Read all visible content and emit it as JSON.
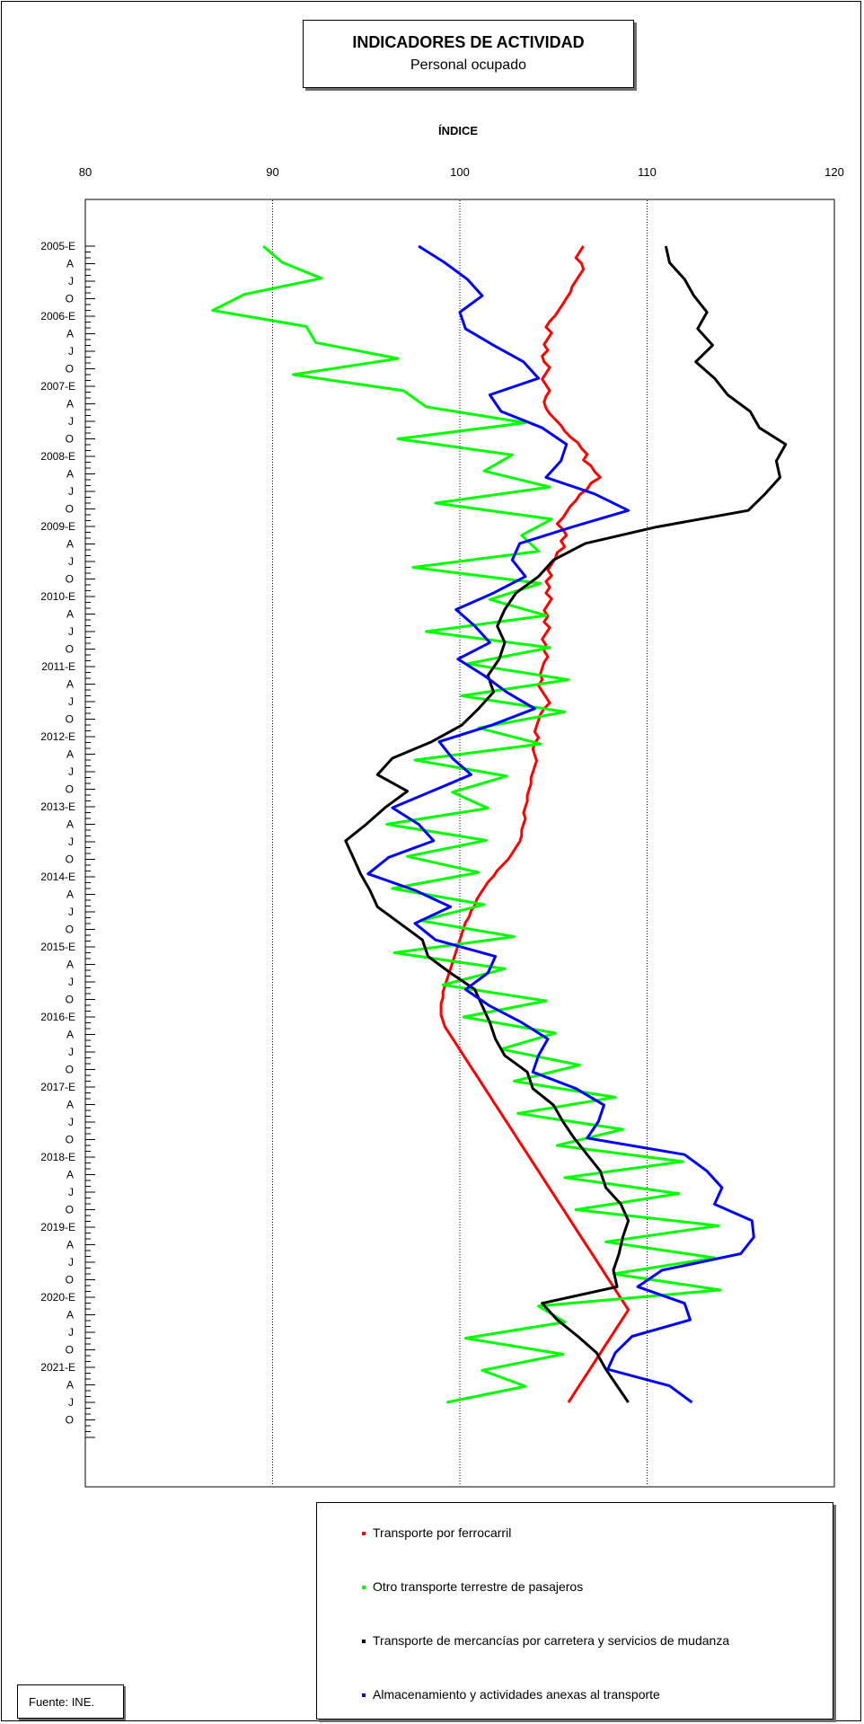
{
  "chart_data": {
    "type": "line",
    "title": "INDICADORES DE ACTIVIDAD",
    "subtitle": "Personal ocupado",
    "xlabel": "ÍNDICE",
    "xlim": [
      80,
      120
    ],
    "x_ticks": [
      "80",
      "90",
      "100",
      "110",
      "120"
    ],
    "gridlines_at": [
      90,
      100,
      110
    ],
    "y_axis_orientation": "time runs downward; values read on horizontal axis",
    "y_tick_labels": [
      "2005-E",
      "A",
      "J",
      "O",
      "2006-E",
      "A",
      "J",
      "O",
      "2007-E",
      "A",
      "J",
      "O",
      "2008-E",
      "A",
      "J",
      "O",
      "2009-E",
      "A",
      "J",
      "O",
      "2010-E",
      "A",
      "J",
      "O",
      "2011-E",
      "A",
      "J",
      "O",
      "2012-E",
      "A",
      "J",
      "O",
      "2013-E",
      "A",
      "J",
      "O",
      "2014-E",
      "A",
      "J",
      "O",
      "2015-E",
      "A",
      "J",
      "O",
      "2016-E",
      "A",
      "J",
      "O",
      "2017-E",
      "A",
      "J",
      "O",
      "2018-E",
      "A",
      "J",
      "O",
      "2019-E",
      "A",
      "J",
      "O",
      "2020-E",
      "A",
      "J",
      "O",
      "2021-E",
      "A",
      "J",
      "O"
    ],
    "period_start": "2005-01",
    "legend_position": "bottom-right",
    "series": [
      {
        "name": "Transporte por ferrocarril",
        "color": "#ff0000",
        "values": [
          106.6,
          106.4,
          106.2,
          106.5,
          106.6,
          106.4,
          106.2,
          106.0,
          105.9,
          105.7,
          105.5,
          105.3,
          105.1,
          104.8,
          104.6,
          104.9,
          104.7,
          104.5,
          104.7,
          104.4,
          104.5,
          104.8,
          104.6,
          104.4,
          104.6,
          104.8,
          104.6,
          104.5,
          104.6,
          104.8,
          105.1,
          105.4,
          105.6,
          105.9,
          106.3,
          106.5,
          106.8,
          106.6,
          107.0,
          107.2,
          107.5,
          107.0,
          106.8,
          106.4,
          106.2,
          105.9,
          105.7,
          105.5,
          105.2,
          105.5,
          105.7,
          105.4,
          105.6,
          105.2,
          105.1,
          104.9,
          104.7,
          104.9,
          104.6,
          104.8,
          104.6,
          104.9,
          104.7,
          104.5,
          104.7,
          104.5,
          104.8,
          104.6,
          104.4,
          104.6,
          104.5,
          104.7,
          104.5,
          104.4,
          104.3,
          104.4,
          104.2,
          104.4,
          104.6,
          104.8,
          104.5,
          104.3,
          104.2,
          104.1,
          104.0,
          104.2,
          104.0,
          103.9,
          104.0,
          104.1,
          104.0,
          103.9,
          103.8,
          103.8,
          103.7,
          103.6,
          103.6,
          103.5,
          103.4,
          103.5,
          103.4,
          103.3,
          103.3,
          103.2,
          103.0,
          102.8,
          102.6,
          102.3,
          102.0,
          101.8,
          101.5,
          101.3,
          101.1,
          100.9,
          100.8,
          100.6,
          100.5,
          100.3,
          100.2,
          100.1,
          100.0,
          99.9,
          99.8,
          99.7,
          99.6,
          99.5,
          99.4,
          99.3,
          99.2,
          99.1,
          99.1,
          99.0,
          99.0,
          99.0,
          99.1,
          99.2,
          99.4,
          99.6,
          99.8,
          100.0,
          100.2,
          100.4,
          100.6,
          100.8,
          101.0,
          101.2,
          101.4,
          101.6,
          101.8,
          102.0,
          102.2,
          102.4,
          102.6,
          102.8,
          103.0,
          103.2,
          103.4,
          103.6,
          103.8,
          104.0,
          104.2,
          104.4,
          104.6,
          104.8,
          105.0,
          105.2,
          105.4,
          105.6,
          105.8,
          106.0,
          106.2,
          106.4,
          106.6,
          106.8,
          107.0,
          107.2,
          107.4,
          107.6,
          107.8,
          108.0,
          108.2,
          108.4,
          108.6,
          108.8,
          109.0,
          108.8,
          108.6,
          108.4,
          108.2,
          108.0,
          107.8,
          107.6,
          107.4,
          107.2,
          107.0,
          106.8,
          106.6,
          106.4,
          106.2,
          106.0,
          105.8
        ]
      },
      {
        "name": "Otro transporte terrestre de pasajeros",
        "color": "#00ff00",
        "values": [
          89.5,
          90.5,
          92.6,
          88.5,
          86.8,
          91.8,
          92.3,
          96.7,
          91.1,
          97.0,
          98.2,
          103.5,
          96.7,
          102.8,
          101.3,
          104.8,
          98.7,
          104.9,
          103.3,
          104.2,
          97.5,
          104.3,
          101.6,
          104.6,
          98.2,
          104.8,
          100.4,
          105.8,
          100.1,
          105.6,
          101.0,
          104.3,
          97.6,
          102.5,
          99.6,
          101.5,
          96.1,
          101.4,
          97.2,
          101.0,
          96.4,
          101.3,
          97.9,
          102.9,
          96.5,
          102.4,
          99.1,
          104.6,
          100.2,
          105.1,
          102.2,
          106.4,
          102.9,
          108.3,
          103.1,
          108.7,
          105.2,
          111.9,
          105.6,
          111.7,
          106.2,
          113.8,
          107.8,
          113.6,
          108.2,
          113.9,
          104.2,
          105.6,
          100.3,
          105.5,
          101.2,
          103.5,
          99.3
        ]
      },
      {
        "name": "Transporte de mercancías por carretera y servicios de mudanza",
        "color": "#000000",
        "values": [
          111.0,
          111.2,
          112.0,
          112.5,
          113.2,
          112.7,
          113.5,
          112.6,
          113.6,
          114.3,
          115.5,
          116.0,
          117.4,
          116.9,
          117.1,
          116.3,
          115.4,
          110.5,
          106.7,
          105.0,
          104.2,
          103.0,
          102.4,
          102.0,
          102.4,
          102.1,
          101.5,
          101.8,
          101.0,
          100.1,
          98.5,
          96.4,
          95.6,
          97.2,
          96.0,
          95.0,
          93.9,
          94.3,
          94.7,
          95.2,
          95.6,
          96.8,
          98.0,
          98.3,
          99.5,
          100.8,
          101.2,
          101.6,
          101.9,
          102.4,
          103.6,
          103.9,
          105.0,
          105.5,
          106.1,
          106.8,
          107.5,
          107.8,
          108.6,
          109.0,
          108.7,
          108.5,
          108.2,
          108.4,
          104.4,
          105.2,
          106.3,
          107.3,
          107.8,
          108.4,
          109.0
        ]
      },
      {
        "name": "Almacenamiento y actividades anexas al transporte",
        "color": "#0000ff",
        "values": [
          97.8,
          99.2,
          100.4,
          101.2,
          100.0,
          100.3,
          101.8,
          103.4,
          104.2,
          101.6,
          102.2,
          104.4,
          105.7,
          105.4,
          104.6,
          107.2,
          109.0,
          106.0,
          103.2,
          102.8,
          103.5,
          101.8,
          99.8,
          100.8,
          101.6,
          99.9,
          101.3,
          102.5,
          104.0,
          101.7,
          98.9,
          99.6,
          100.6,
          98.5,
          96.4,
          97.8,
          98.6,
          96.2,
          95.1,
          97.6,
          99.5,
          97.6,
          98.7,
          101.9,
          101.5,
          100.3,
          101.6,
          103.3,
          104.7,
          104.2,
          103.9,
          106.2,
          107.7,
          107.4,
          106.8,
          112.0,
          113.2,
          114.0,
          113.6,
          115.6,
          115.7,
          115.0,
          110.8,
          109.5,
          112.0,
          112.3,
          109.2,
          108.3,
          107.9,
          111.2,
          112.4
        ]
      }
    ]
  },
  "legend": {
    "items": [
      {
        "label": "Transporte por ferrocarril",
        "color": "#ff0000"
      },
      {
        "label": "Otro transporte terrestre de pasajeros",
        "color": "#00ff00"
      },
      {
        "label": "Transporte de mercancías por carretera y servicios de mudanza",
        "color": "#000000"
      },
      {
        "label": "Almacenamiento y actividades anexas al transporte",
        "color": "#0000ff"
      }
    ]
  },
  "source": "Fuente: INE."
}
